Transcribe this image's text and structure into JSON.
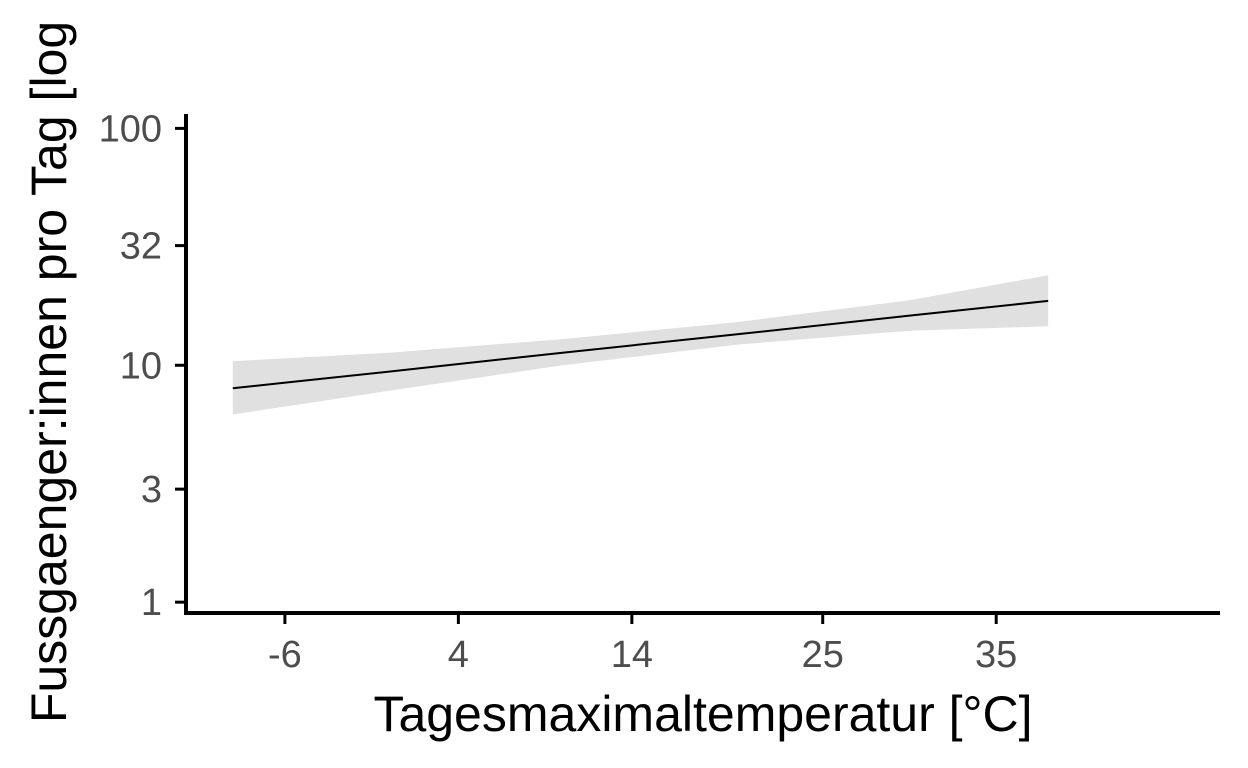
{
  "colors": {
    "line": "#000000",
    "ribbon": "#e0e0e0",
    "axis": "#000000",
    "tick_label": "#4d4d4d"
  },
  "chart_data": {
    "type": "line",
    "title": "",
    "xlabel": "Tagesmaximaltemperatur [°C]",
    "ylabel": "Fussgaenger:innen pro Tag [log",
    "x_scale": "linear",
    "y_scale": "log",
    "xlim": [
      -11.7,
      47.9
    ],
    "ylim": [
      0.9,
      115
    ],
    "x_ticks": [
      -6,
      4,
      14,
      25,
      35
    ],
    "x_tick_labels": [
      "-6",
      "4",
      "14",
      "25",
      "35"
    ],
    "y_ticks": [
      1,
      3,
      10,
      32,
      100
    ],
    "y_tick_labels": [
      "1",
      "3",
      "10",
      "32",
      "100"
    ],
    "grid": false,
    "legend": "none",
    "series": [
      {
        "x": [
          -9,
          0,
          10,
          20,
          30,
          38
        ],
        "y": [
          8,
          9.4,
          11.3,
          13.5,
          16.2,
          18.7
        ],
        "ci_lower": [
          6.2,
          7.8,
          10.0,
          12.2,
          14.0,
          14.6
        ],
        "ci_upper": [
          10.4,
          11.3,
          12.9,
          15.2,
          18.8,
          24.0
        ]
      }
    ]
  }
}
